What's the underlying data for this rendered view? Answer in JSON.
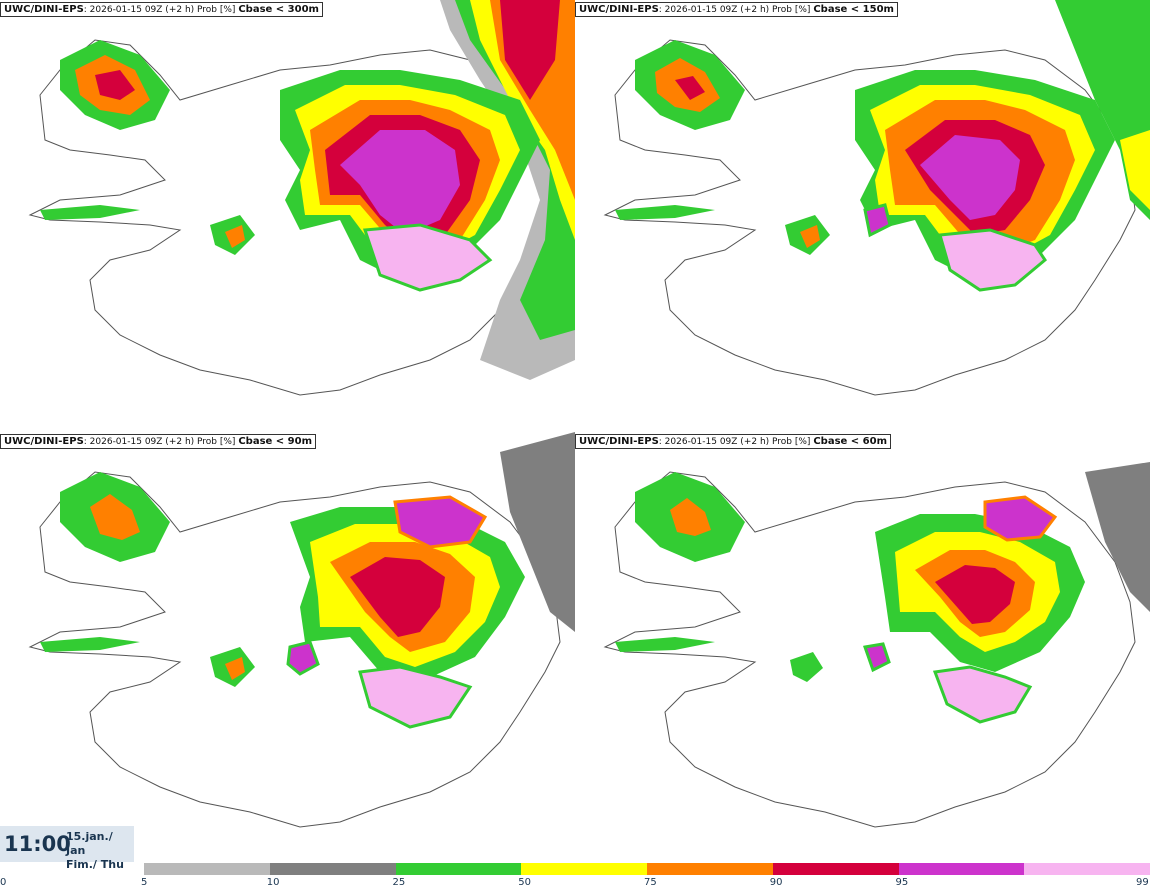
{
  "panels": [
    {
      "model": "UWC/DINI-EPS",
      "meta": ": 2026-01-15 09Z (+2 h) Prob [%]",
      "threshold": "Cbase < 300m"
    },
    {
      "model": "UWC/DINI-EPS",
      "meta": ": 2026-01-15 09Z (+2 h) Prob [%]",
      "threshold": "Cbase < 150m"
    },
    {
      "model": "UWC/DINI-EPS",
      "meta": ": 2026-01-15 09Z (+2 h) Prob [%]",
      "threshold": "Cbase < 90m"
    },
    {
      "model": "UWC/DINI-EPS",
      "meta": ": 2026-01-15 09Z (+2 h) Prob [%]",
      "threshold": "Cbase < 60m"
    }
  ],
  "valid_time": {
    "clock": "11:00",
    "date_line1": "15.jan./ Jan",
    "date_line2": "Fim./ Thu"
  },
  "legend": {
    "ticks": [
      "0",
      "5",
      "10",
      "25",
      "50",
      "75",
      "90",
      "95",
      "99"
    ],
    "colors": [
      "#b9b9b9",
      "#7f7f7f",
      "#33cc33",
      "#ffff00",
      "#ff8000",
      "#d4003c",
      "#cc33cc",
      "#f7b4f0"
    ]
  }
}
